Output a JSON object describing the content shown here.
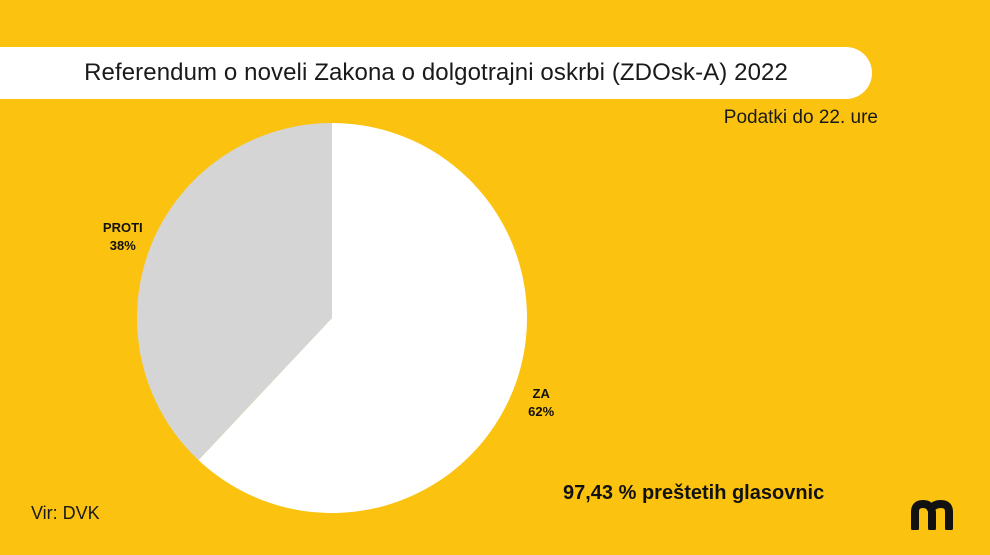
{
  "header": {
    "title": "Referendum o noveli Zakona o dolgotrajni oskrbi (ZDOsk-A) 2022",
    "subtitle": "Podatki do 22. ure"
  },
  "chart_data": {
    "type": "pie",
    "slices": [
      {
        "label": "ZA",
        "value": 62,
        "value_label": "62%",
        "color": "#FFFFFF"
      },
      {
        "label": "PROTI",
        "value": 38,
        "value_label": "38%",
        "color": "#D5D5D5"
      }
    ]
  },
  "footer": {
    "counted": "97,43 % preštetih glasovnic",
    "source": "Vir: DVK"
  },
  "colors": {
    "background": "#FBC30F",
    "text": "#111111"
  },
  "logo": {
    "icon": "m-logo-icon"
  }
}
